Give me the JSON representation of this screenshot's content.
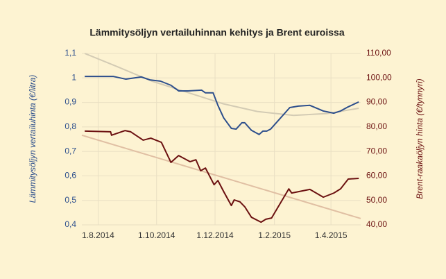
{
  "chart_data": {
    "type": "line",
    "title": "Lämmitysöljyn vertailuhinnan kehitys ja Brent euroissa",
    "ylabel": "Lämmitysöljyn vertailuhinta (€/litra)",
    "y2label": "Brent-raakaöljyn hinta (€/tynnyri)",
    "xlim": [
      "2014-07-15",
      "2015-05-02"
    ],
    "xticks": [
      {
        "value": "2014-08-01",
        "label": "1.8.2014"
      },
      {
        "value": "2014-10-01",
        "label": "1.10.2014"
      },
      {
        "value": "2014-12-01",
        "label": "1.12.2014"
      },
      {
        "value": "2015-02-01",
        "label": "1.2.2015"
      },
      {
        "value": "2015-04-01",
        "label": "1.4.2015"
      }
    ],
    "ylim": [
      0.4,
      1.1
    ],
    "yticks": [
      {
        "value": 0.4,
        "label": "0,4"
      },
      {
        "value": 0.5,
        "label": "0,5"
      },
      {
        "value": 0.6,
        "label": "0,6"
      },
      {
        "value": 0.7,
        "label": "0,7"
      },
      {
        "value": 0.8,
        "label": "0,8"
      },
      {
        "value": 0.9,
        "label": "0,9"
      },
      1,
      {
        "value": 1.1,
        "label": "1,1"
      }
    ],
    "y2lim": [
      40,
      110
    ],
    "y2ticks": [
      {
        "value": 40,
        "label": "40,00"
      },
      {
        "value": 50,
        "label": "50,00"
      },
      {
        "value": 60,
        "label": "60,00"
      },
      {
        "value": 70,
        "label": "70,00"
      },
      {
        "value": 80,
        "label": "80,00"
      },
      {
        "value": 90,
        "label": "90,00"
      },
      {
        "value": 100,
        "label": "100,00"
      },
      {
        "value": 110,
        "label": "110,00"
      }
    ],
    "grid": true,
    "series": [
      {
        "color": "#d3cbb4",
        "line_width": 2,
        "axis": "y",
        "x": [
          "2014-07-18",
          "2014-08-21",
          "2014-09-26",
          "2014-11-02",
          "2014-12-09",
          "2015-01-14",
          "2015-02-21",
          "2015-03-29",
          "2015-04-30"
        ],
        "values": [
          1.1,
          1.046,
          0.987,
          0.941,
          0.895,
          0.863,
          0.847,
          0.855,
          0.876
        ]
      },
      {
        "color": "#e0bfa3",
        "line_width": 2,
        "axis": "y2",
        "x": [
          "2014-07-15",
          "2015-05-02"
        ],
        "values": [
          76.6,
          42.6
        ]
      },
      {
        "color": "#2c4e8c",
        "line_width": 2,
        "axis": "y",
        "x": [
          "2014-07-18",
          "2014-08-17",
          "2014-08-30",
          "2014-09-15",
          "2014-09-24",
          "2014-10-05",
          "2014-10-16",
          "2014-10-24",
          "2014-11-03",
          "2014-11-17",
          "2014-11-21",
          "2014-11-29",
          "2014-12-04",
          "2014-12-10",
          "2014-12-18",
          "2014-12-23",
          "2014-12-29",
          "2015-01-01",
          "2015-01-08",
          "2015-01-16",
          "2015-01-20",
          "2015-01-24",
          "2015-01-28",
          "2015-02-17",
          "2015-02-26",
          "2015-03-10",
          "2015-03-24",
          "2015-04-04",
          "2015-04-11",
          "2015-04-19",
          "2015-04-30"
        ],
        "values": [
          1.006,
          1.006,
          0.995,
          1.004,
          0.992,
          0.987,
          0.97,
          0.947,
          0.947,
          0.95,
          0.939,
          0.939,
          0.888,
          0.837,
          0.794,
          0.791,
          0.817,
          0.817,
          0.786,
          0.769,
          0.783,
          0.783,
          0.791,
          0.879,
          0.885,
          0.888,
          0.865,
          0.856,
          0.865,
          0.882,
          0.902
        ]
      },
      {
        "color": "#6b1010",
        "line_width": 2,
        "axis": "y2",
        "x": [
          "2014-07-18",
          "2014-08-14",
          "2014-08-15",
          "2014-08-29",
          "2014-09-04",
          "2014-09-17",
          "2014-09-25",
          "2014-10-06",
          "2014-10-16",
          "2014-10-24",
          "2014-11-05",
          "2014-11-11",
          "2014-11-16",
          "2014-11-21",
          "2014-11-30",
          "2014-12-04",
          "2014-12-10",
          "2014-12-18",
          "2014-12-21",
          "2014-12-27",
          "2015-01-01",
          "2015-01-08",
          "2015-01-18",
          "2015-01-23",
          "2015-01-29",
          "2015-02-16",
          "2015-02-19",
          "2015-03-10",
          "2015-03-24",
          "2015-04-04",
          "2015-04-11",
          "2015-04-19",
          "2015-04-30"
        ],
        "values": [
          78.3,
          78.0,
          76.6,
          78.5,
          78.0,
          74.6,
          75.4,
          73.7,
          65.5,
          68.3,
          65.8,
          66.6,
          62.1,
          63.2,
          56.4,
          58.1,
          53.6,
          47.9,
          50.2,
          49.4,
          47.4,
          43.1,
          41.1,
          42.3,
          42.8,
          54.7,
          53.0,
          54.5,
          51.3,
          53.0,
          54.7,
          58.7,
          59.0
        ]
      }
    ]
  }
}
